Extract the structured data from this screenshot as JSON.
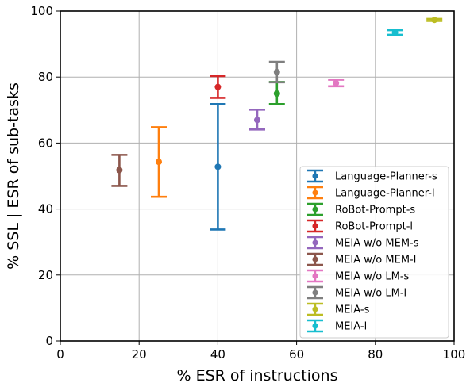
{
  "chart_data": {
    "type": "scatter",
    "xlabel": "% ESR of instructions",
    "ylabel": "% SSL | ESR of sub-tasks",
    "xlim": [
      0,
      100
    ],
    "ylim": [
      0,
      100
    ],
    "xticks": [
      "0",
      "20",
      "40",
      "60",
      "80",
      "100"
    ],
    "yticks": [
      "0",
      "20",
      "40",
      "60",
      "80",
      "100"
    ],
    "grid": true,
    "legend_position": "lower-right",
    "series": [
      {
        "name": "Language-Planner-s",
        "color": "#1f77b4",
        "x": 40,
        "y": 52.8,
        "ylow": 33.8,
        "yhigh": 71.8
      },
      {
        "name": "Language-Planner-l",
        "color": "#ff7f0e",
        "x": 25,
        "y": 54.3,
        "ylow": 43.7,
        "yhigh": 64.8
      },
      {
        "name": "RoBot-Prompt-s",
        "color": "#2ca02c",
        "x": 55,
        "y": 75.0,
        "ylow": 71.8,
        "yhigh": 78.5
      },
      {
        "name": "RoBot-Prompt-l",
        "color": "#d62728",
        "x": 40,
        "y": 77.0,
        "ylow": 73.7,
        "yhigh": 80.3
      },
      {
        "name": "MEIA w/o MEM-s",
        "color": "#9467bd",
        "x": 50,
        "y": 67.0,
        "ylow": 64.1,
        "yhigh": 70.1
      },
      {
        "name": "MEIA w/o MEM-l",
        "color": "#8c564b",
        "x": 15,
        "y": 51.8,
        "ylow": 47.0,
        "yhigh": 56.4
      },
      {
        "name": "MEIA w/o LM-s",
        "color": "#e377c2",
        "x": 70,
        "y": 78.2,
        "ylow": 77.2,
        "yhigh": 79.2
      },
      {
        "name": "MEIA w/o LM-l",
        "color": "#7f7f7f",
        "x": 55,
        "y": 81.5,
        "ylow": 78.4,
        "yhigh": 84.6
      },
      {
        "name": "MEIA-s",
        "color": "#bcbd22",
        "x": 95,
        "y": 97.3,
        "ylow": 97.0,
        "yhigh": 97.6
      },
      {
        "name": "MEIA-l",
        "color": "#17becf",
        "x": 85,
        "y": 93.5,
        "ylow": 92.8,
        "yhigh": 94.2
      }
    ]
  }
}
